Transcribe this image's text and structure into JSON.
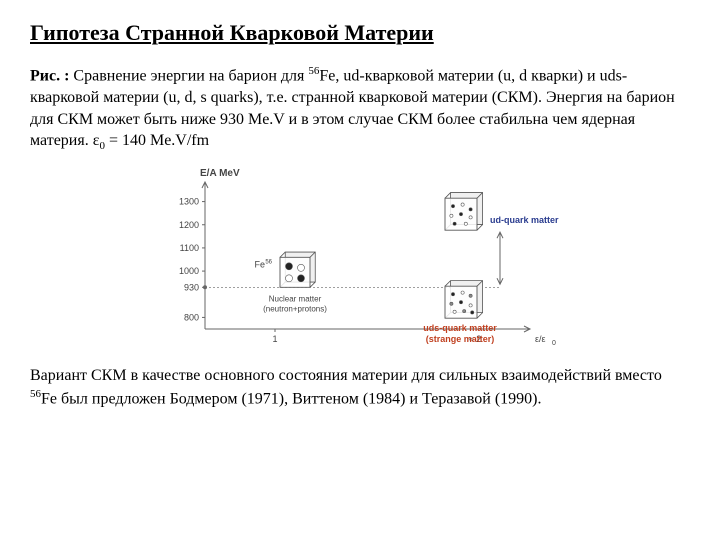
{
  "title": "Гипотеза Странной Кварковой Материи",
  "caption_label": "Рис. :",
  "caption_text": " Сравнение энергии на барион для ",
  "caption_fe": "Fe, ud-кварковой материи (u, d кварки) и uds-кварковой материи (u, d, s quarks), т.е. странной   кварковой материи (СКМ). Энергия на барион для СКМ может быть ниже 930 Me.V и в этом случае СКМ более стабильна чем ядерная материя. ε",
  "caption_end": " = 140 Me.V/fm",
  "conclusion_a": "Вариант СКМ в качестве основного состояния материи для сильных взаимодействий вместо ",
  "conclusion_b": "Fe был предложен Бодмером (1971), Виттеном (1984) и Теразавой (1990).",
  "chart": {
    "ylabel": "E/A MeV",
    "yticks": [
      "1300",
      "1200",
      "1100",
      "1000",
      "930",
      "800"
    ],
    "ytick_vals": [
      1300,
      1200,
      1100,
      1000,
      930,
      800
    ],
    "ymin": 750,
    "ymax": 1350,
    "nuclear_label1": "Nuclear matter",
    "nuclear_label2": "(neutron+protons)",
    "fe_label": "Fe",
    "fe_sup": "56",
    "ud_label": "ud-quark matter",
    "uds_label1": "uds-quark matter",
    "uds_label2": "(strange matter)",
    "xtick1": "1",
    "xtick2": "≈ 2",
    "xlabel": "ε/ε",
    "xlabel_sub": "0",
    "colors": {
      "axis": "#666666",
      "text": "#444444",
      "ud_text": "#2a3c8f",
      "uds_text": "#c04020",
      "cube_line": "#555555",
      "cube_fill": "#f0f0f0",
      "dot_d": "#222222",
      "dot_u": "#ffffff",
      "dot_s": "#888888"
    }
  }
}
